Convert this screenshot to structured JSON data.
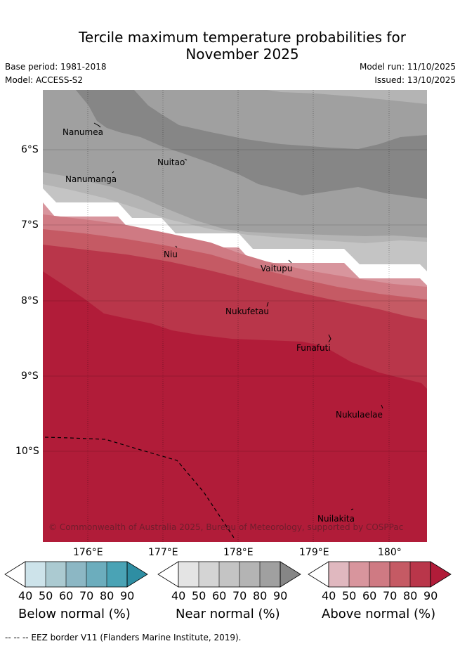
{
  "title_line1": "Tercile maximum temperature probabilities for",
  "title_line2": "November 2025",
  "base_period": "Base period: 1981-2018",
  "model": "Model: ACCESS-S2",
  "model_run": "Model run: 11/10/2025",
  "issued": "Issued: 13/10/2025",
  "places": [
    "Nanumea",
    "Nuitao",
    "Nanumanga",
    "Niu",
    "Vaitupu",
    "Nukufetau",
    "Funafuti",
    "Nukulaelae",
    "Nuilakita"
  ],
  "lat_labels": [
    "6°S",
    "7°S",
    "8°S",
    "9°S",
    "10°S"
  ],
  "lon_labels": [
    "176°E",
    "177°E",
    "178°E",
    "179°E",
    "180°"
  ],
  "copyright": "© Commonwealth of Australia 2025, Bureau of Meteorology, supported by COSPPac",
  "colorbars": {
    "ticks": [
      "40",
      "50",
      "60",
      "70",
      "80",
      "90"
    ],
    "below": {
      "label": "Below normal (%)",
      "colors": [
        "#ffffff",
        "#cde3ea",
        "#abcad1",
        "#8cb7c4",
        "#6cadbd",
        "#4aa3b5",
        "#2e8ea3"
      ]
    },
    "near": {
      "label": "Near normal (%)",
      "colors": [
        "#ffffff",
        "#e4e4e4",
        "#d4d4d4",
        "#c4c4c4",
        "#b4b4b4",
        "#a0a0a0",
        "#868686"
      ]
    },
    "above": {
      "label": "Above normal (%)",
      "colors": [
        "#ffffff",
        "#e0b8bf",
        "#d8959d",
        "#cf7a83",
        "#c55a64",
        "#b9364a",
        "#b11c39"
      ]
    }
  },
  "map_palette": {
    "near_80": "#868686",
    "near_70": "#a0a0a0",
    "near_60": "#b4b4b4",
    "near_50": "#c4c4c4",
    "neutral": "#ffffff",
    "above_50": "#d8959d",
    "above_60": "#cf7a83",
    "above_70": "#c55a64",
    "above_80": "#b9364a",
    "above_90": "#b11c39"
  },
  "footnote": "--  --  -- EEZ border V11 (Flanders Marine Institute, 2019)."
}
